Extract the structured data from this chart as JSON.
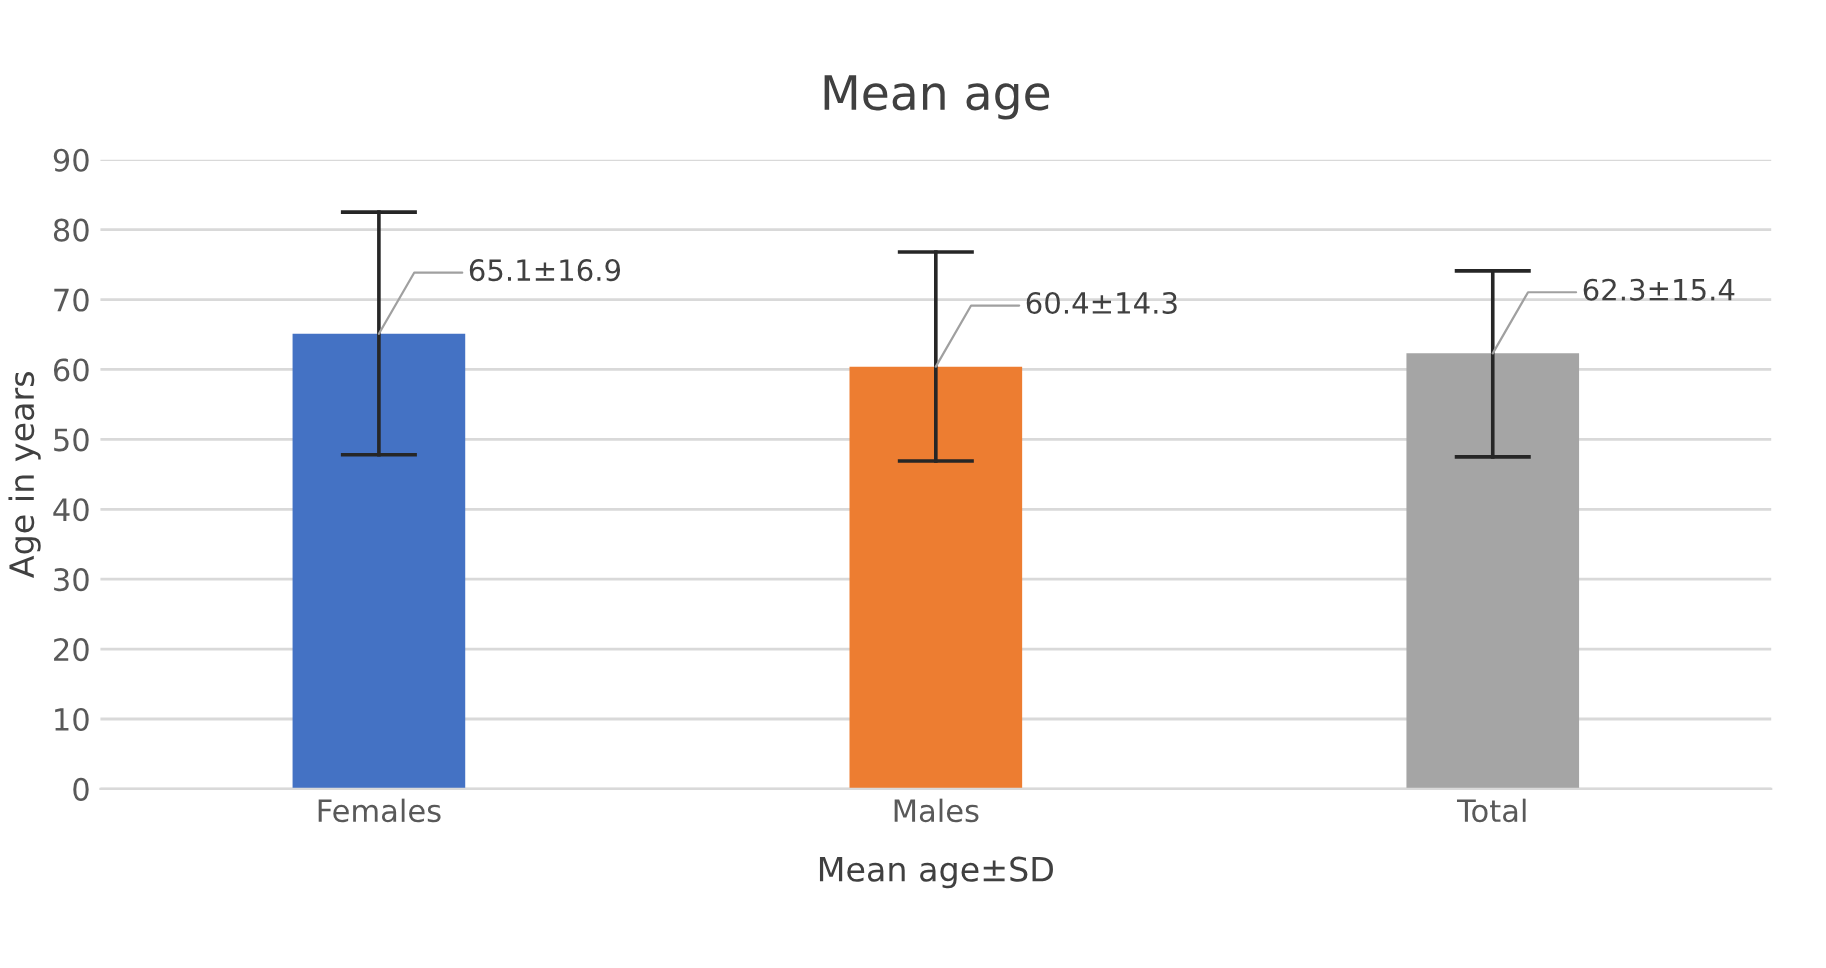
{
  "chart_data": {
    "type": "bar",
    "title": "Mean age",
    "xlabel": "Mean age±SD",
    "ylabel": "Age in years",
    "categories": [
      "Females",
      "Males",
      "Total"
    ],
    "values": [
      65.1,
      60.4,
      62.3
    ],
    "colors": [
      "#4472c4",
      "#ed7d31",
      "#a5a5a5"
    ],
    "errors": [
      [
        47.8,
        82.5
      ],
      [
        46.9,
        76.8
      ],
      [
        47.5,
        74.1
      ]
    ],
    "value_labels": [
      "65.1±16.9",
      "60.4±14.3",
      "62.3±15.4"
    ],
    "ylim": [
      0,
      90
    ],
    "yticks": [
      0,
      10,
      20,
      30,
      40,
      50,
      60,
      70,
      80,
      90
    ],
    "grid": "y",
    "legend": false
  }
}
